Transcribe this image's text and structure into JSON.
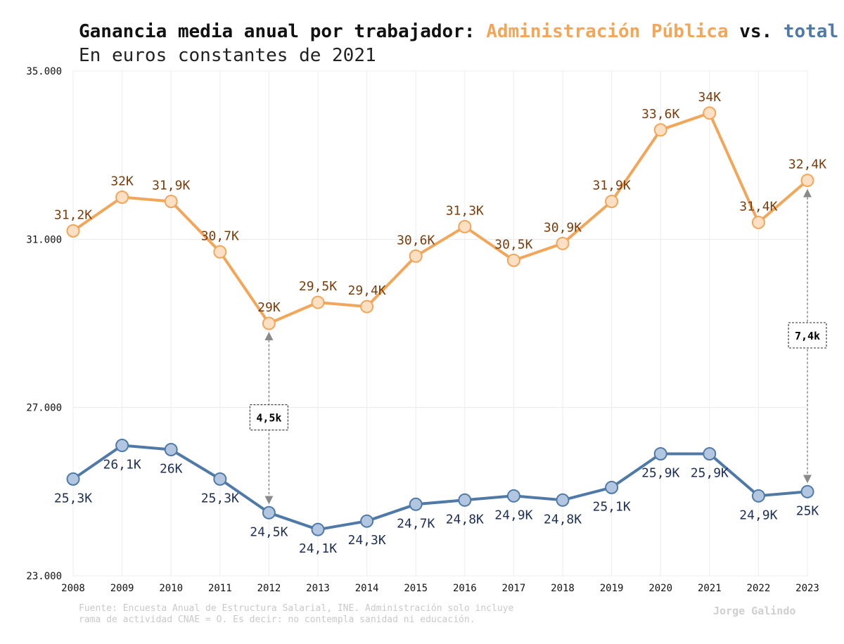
{
  "title": {
    "prefix": "Ganancia media anual por trabajador: ",
    "series_a": "Administración Pública",
    "mid": " vs. ",
    "series_b": "total"
  },
  "subtitle": "En euros constantes de 2021",
  "footer": {
    "line1": "Fuente: Encuesta Anual de Estructura Salarial, INE. Administración solo incluye",
    "line2": "rama de actividad CNAE = O. Es decir: no contempla sanidad ni educación.",
    "author": "Jorge Galindo"
  },
  "colors": {
    "admin_line": "#f2a65a",
    "admin_fill": "#fde0c3",
    "total_line": "#4f7aa8",
    "total_fill": "#b3c6df",
    "grid": "#ececec"
  },
  "chart_data": {
    "type": "line",
    "x": [
      2008,
      2009,
      2010,
      2011,
      2012,
      2013,
      2014,
      2015,
      2016,
      2017,
      2018,
      2019,
      2020,
      2021,
      2022,
      2023
    ],
    "ylim": [
      23000,
      35000
    ],
    "yticks": [
      23000,
      27000,
      31000,
      35000
    ],
    "ytick_labels": [
      "23.000",
      "27.000",
      "31.000",
      "35.000"
    ],
    "grid": true,
    "series": [
      {
        "name": "Administración Pública",
        "values": [
          31200,
          32000,
          31900,
          30700,
          29000,
          29500,
          29400,
          30600,
          31300,
          30500,
          30900,
          31900,
          33600,
          34000,
          31400,
          32400
        ],
        "labels": [
          "31,2K",
          "32K",
          "31,9K",
          "30,7K",
          "29K",
          "29,5K",
          "29,4K",
          "30,6K",
          "31,3K",
          "30,5K",
          "30,9K",
          "31,9K",
          "33,6K",
          "34K",
          "31,4K",
          "32,4K"
        ]
      },
      {
        "name": "total",
        "values": [
          25300,
          26100,
          26000,
          25300,
          24500,
          24100,
          24300,
          24700,
          24800,
          24900,
          24800,
          25100,
          25900,
          25900,
          24900,
          25000
        ],
        "labels": [
          "25,3K",
          "26,1K",
          "26K",
          "25,3K",
          "24,5K",
          "24,1K",
          "24,3K",
          "24,7K",
          "24,8K",
          "24,9K",
          "24,8K",
          "25,1K",
          "25,9K",
          "25,9K",
          "24,9K",
          "25K"
        ]
      }
    ],
    "annotations": [
      {
        "year": 2012,
        "label": "4,5k"
      },
      {
        "year": 2023,
        "label": "7,4k"
      }
    ]
  }
}
